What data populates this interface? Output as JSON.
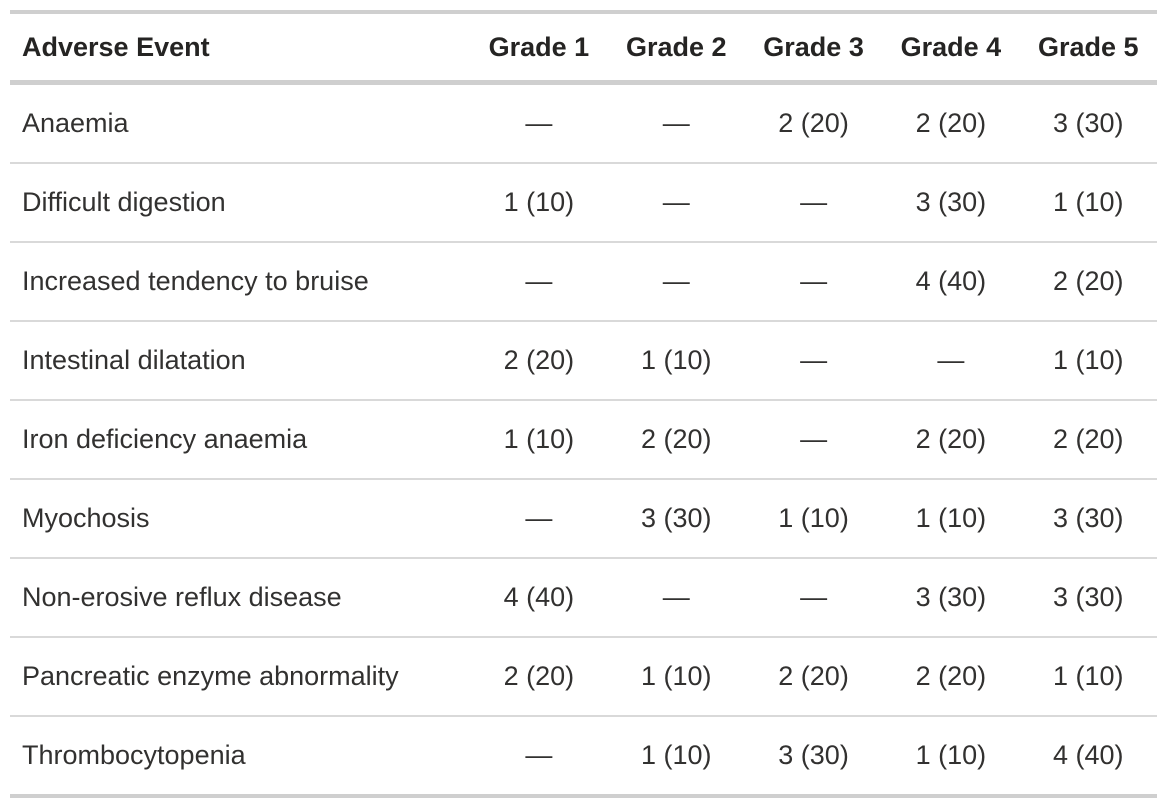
{
  "chart_data": {
    "type": "table",
    "columns": [
      "Adverse Event",
      "Grade 1",
      "Grade 2",
      "Grade 3",
      "Grade 4",
      "Grade 5"
    ],
    "empty_marker": "—",
    "rows": [
      [
        "Anaemia",
        "—",
        "—",
        "2 (20)",
        "2 (20)",
        "3 (30)"
      ],
      [
        "Difficult digestion",
        "1 (10)",
        "—",
        "—",
        "3 (30)",
        "1 (10)"
      ],
      [
        "Increased tendency to bruise",
        "—",
        "—",
        "—",
        "4 (40)",
        "2 (20)"
      ],
      [
        "Intestinal dilatation",
        "2 (20)",
        "1 (10)",
        "—",
        "—",
        "1 (10)"
      ],
      [
        "Iron deficiency anaemia",
        "1 (10)",
        "2 (20)",
        "—",
        "2 (20)",
        "2 (20)"
      ],
      [
        "Myochosis",
        "—",
        "3 (30)",
        "1 (10)",
        "1 (10)",
        "3 (30)"
      ],
      [
        "Non-erosive reflux disease",
        "4 (40)",
        "—",
        "—",
        "3 (30)",
        "3 (30)"
      ],
      [
        "Pancreatic enzyme abnormality",
        "2 (20)",
        "1 (10)",
        "2 (20)",
        "2 (20)",
        "1 (10)"
      ],
      [
        "Thrombocytopenia",
        "—",
        "1 (10)",
        "3 (30)",
        "1 (10)",
        "4 (40)"
      ]
    ],
    "layout": {
      "grid": "horizontal-only",
      "header_bold": true,
      "value_alignment": "center",
      "event_alignment": "left"
    }
  },
  "colors": {
    "background": "#ffffff",
    "header_text": "#252423",
    "body_text": "#323130",
    "border_heavy": "#cfcfcf",
    "border_light": "#d9d9d9"
  }
}
